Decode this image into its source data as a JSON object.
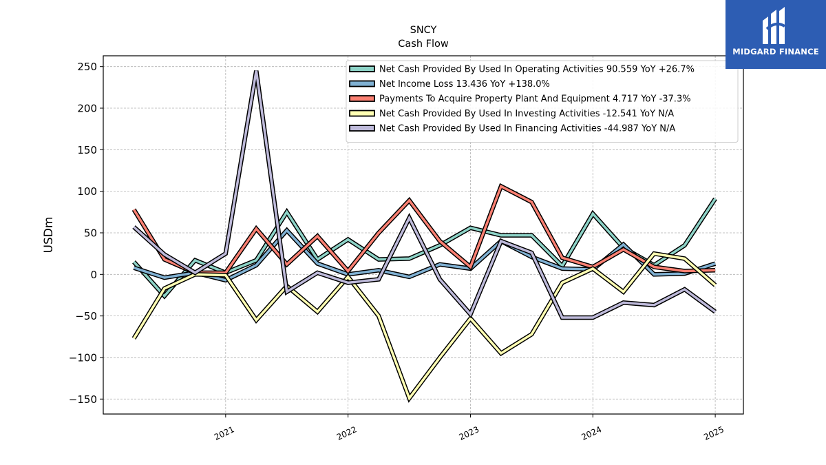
{
  "brand": {
    "name": "MIDGARD FINANCE",
    "bg_color": "#2d5db3"
  },
  "chart_data": {
    "type": "line",
    "title": "SNCY",
    "subtitle": "Cash Flow",
    "ylabel": "USDm",
    "xlabel": "",
    "ylim": [
      -168,
      263
    ],
    "xlim": [
      2020.0,
      2025.23
    ],
    "yticks": [
      -150,
      -100,
      -50,
      0,
      50,
      100,
      150,
      200,
      250
    ],
    "xticks": [
      {
        "value": 2021,
        "label": "2021"
      },
      {
        "value": 2022,
        "label": "2022"
      },
      {
        "value": 2023,
        "label": "2023"
      },
      {
        "value": 2024,
        "label": "2024"
      },
      {
        "value": 2025,
        "label": "2025"
      }
    ],
    "grid": true,
    "legend_position": "top-right",
    "x": [
      2020.25,
      2020.5,
      2020.75,
      2021.0,
      2021.25,
      2021.5,
      2021.75,
      2022.0,
      2022.25,
      2022.5,
      2022.75,
      2023.0,
      2023.25,
      2023.5,
      2023.75,
      2024.0,
      2024.25,
      2024.5,
      2024.75,
      2025.0
    ],
    "series": [
      {
        "name": "Net Cash Provided By Used In Operating Activities  90.559 YoY +26.7%",
        "color": "#8dd3c7",
        "values": [
          15,
          -26,
          17,
          2,
          17,
          75,
          18,
          42,
          18,
          19,
          35,
          56,
          47,
          47,
          10,
          73,
          32,
          11,
          35,
          91
        ]
      },
      {
        "name": "Net Income Loss  13.436 YoY +138.0%",
        "color": "#80b1d3",
        "values": [
          8,
          -4,
          2,
          -7,
          11,
          53,
          13,
          0,
          5,
          -3,
          12,
          7,
          40,
          21,
          7,
          6,
          36,
          0,
          1,
          13
        ]
      },
      {
        "name": "Payments To Acquire Property Plant And Equipment  4.717 YoY -37.3%",
        "color": "#fb8072",
        "values": [
          78,
          18,
          2,
          2,
          55,
          12,
          46,
          4,
          50,
          89,
          40,
          9,
          106,
          87,
          20,
          9,
          30,
          9,
          4,
          5
        ]
      },
      {
        "name": "Net Cash Provided By Used In Investing Activities  -12.541 YoY N/A",
        "color": "#ffffb3",
        "values": [
          -77,
          -17,
          0,
          -1,
          -55,
          -14,
          -45,
          -3,
          -50,
          -149,
          -100,
          -53,
          -95,
          -72,
          -10,
          7,
          -21,
          25,
          19,
          -13
        ]
      },
      {
        "name": "Net Cash Provided By Used In Financing Activities  -44.987 YoY N/A",
        "color": "#bebada",
        "values": [
          57,
          24,
          2,
          25,
          245,
          -21,
          2,
          -10,
          -6,
          68,
          -6,
          -48,
          40,
          26,
          -52,
          -52,
          -34,
          -37,
          -18,
          -45
        ]
      }
    ]
  }
}
